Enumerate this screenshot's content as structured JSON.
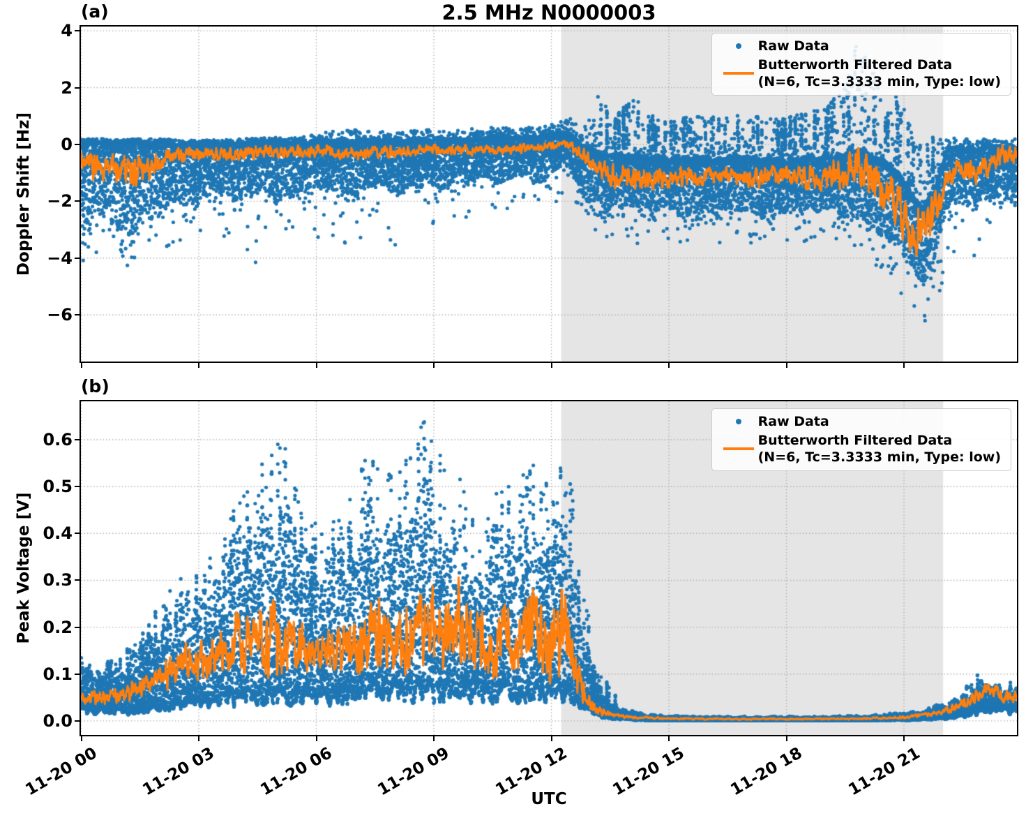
{
  "figure": {
    "title": "2.5 MHz N0000003"
  },
  "panels": {
    "a": {
      "letter": "(a)",
      "ylabel": "Doppler Shift [Hz]",
      "ytick_labels": [
        "4",
        "2",
        "0",
        "−2",
        "−4",
        "−6"
      ]
    },
    "b": {
      "letter": "(b)",
      "ylabel": "Peak Voltage [V]",
      "ytick_labels": [
        "0.6",
        "0.5",
        "0.4",
        "0.3",
        "0.2",
        "0.1",
        "0.0"
      ]
    }
  },
  "xaxis": {
    "label": "UTC",
    "tick_labels": [
      "11-20 00",
      "11-20 03",
      "11-20 06",
      "11-20 09",
      "11-20 12",
      "11-20 15",
      "11-20 18",
      "11-20 21"
    ],
    "tick_hours": [
      0,
      3,
      6,
      9,
      12,
      15,
      18,
      21
    ]
  },
  "legend": {
    "raw": "Raw Data",
    "filt1": "Butterworth Filtered Data",
    "filt2": "(N=6, Tc=3.3333 min, Type: low)"
  },
  "colors": {
    "raw": "#1f77b4",
    "filtered": "#ff7f0e",
    "shade": "#e5e5e5",
    "grid": "#b0b0b0"
  },
  "chart_data": [
    {
      "type": "scatter",
      "panel": "a",
      "title": "2.5 MHz N0000003",
      "xlabel": "UTC",
      "ylabel": "Doppler Shift [Hz]",
      "x_unit": "hours UTC on 11-20",
      "xlim": [
        0,
        23.88
      ],
      "ylim": [
        -7.64,
        4.15
      ],
      "ytick_values": [
        4,
        2,
        0,
        -2,
        -4,
        -6
      ],
      "xtick_hours": [
        0,
        3,
        6,
        9,
        12,
        15,
        18,
        21
      ],
      "grid": true,
      "legend_position": "upper right",
      "legend_entries": [
        "Raw Data",
        "Butterworth Filtered Data (N=6, Tc=3.3333 min, Type: low)"
      ],
      "shaded_region_hours": [
        12.25,
        22.0
      ],
      "raw_band": {
        "description": "blue raw-data scatter envelope: [hour, sparse_max, dense_top, dense_bottom, sparse_min] in Hz",
        "keypoints": [
          [
            0.0,
            0.2,
            0.1,
            -2.6,
            -4.2
          ],
          [
            0.7,
            0.2,
            0.1,
            -2.9,
            -4.4
          ],
          [
            1.4,
            0.2,
            0.08,
            -3.0,
            -4.3
          ],
          [
            2.0,
            0.2,
            0.05,
            -2.2,
            -4.0
          ],
          [
            2.6,
            0.15,
            0.05,
            -2.0,
            -3.3
          ],
          [
            3.2,
            0.15,
            0.05,
            -1.9,
            -3.1
          ],
          [
            4.0,
            0.2,
            0.06,
            -1.8,
            -3.6
          ],
          [
            4.6,
            0.25,
            0.08,
            -1.8,
            -4.6
          ],
          [
            5.2,
            0.25,
            0.1,
            -1.7,
            -3.0
          ],
          [
            6.0,
            0.35,
            0.1,
            -1.6,
            -3.3
          ],
          [
            6.8,
            0.6,
            0.12,
            -1.7,
            -3.7
          ],
          [
            7.5,
            0.45,
            0.12,
            -1.6,
            -3.1
          ],
          [
            8.2,
            0.45,
            0.15,
            -1.5,
            -3.7
          ],
          [
            9.0,
            0.55,
            0.2,
            -1.5,
            -3.1
          ],
          [
            9.8,
            0.5,
            0.2,
            -1.4,
            -2.8
          ],
          [
            10.4,
            0.7,
            0.25,
            -1.35,
            -2.6
          ],
          [
            11.0,
            0.55,
            0.25,
            -1.3,
            -2.5
          ],
          [
            11.6,
            0.65,
            0.3,
            -1.2,
            -2.4
          ],
          [
            12.1,
            0.75,
            0.35,
            -1.0,
            -2.1
          ],
          [
            12.45,
            0.95,
            0.4,
            -0.85,
            -1.6
          ],
          [
            12.8,
            0.5,
            0.0,
            -1.6,
            -2.5
          ],
          [
            13.2,
            1.85,
            -0.3,
            -2.2,
            -3.2
          ],
          [
            13.6,
            0.9,
            -0.4,
            -2.3,
            -3.3
          ],
          [
            14.1,
            1.8,
            -0.4,
            -2.3,
            -3.6
          ],
          [
            14.7,
            0.85,
            -0.5,
            -2.4,
            -3.4
          ],
          [
            15.3,
            0.95,
            -0.5,
            -2.4,
            -3.6
          ],
          [
            16.1,
            1.0,
            -0.5,
            -2.4,
            -3.5
          ],
          [
            17.0,
            1.05,
            -0.5,
            -2.4,
            -3.6
          ],
          [
            18.0,
            0.95,
            -0.5,
            -2.4,
            -3.4
          ],
          [
            19.0,
            1.3,
            -0.4,
            -2.5,
            -3.5
          ],
          [
            19.5,
            2.1,
            -0.3,
            -2.5,
            -3.6
          ],
          [
            19.8,
            3.6,
            -0.2,
            -2.6,
            -3.8
          ],
          [
            20.1,
            3.1,
            -0.3,
            -2.8,
            -4.1
          ],
          [
            20.5,
            1.6,
            -0.6,
            -3.1,
            -4.7
          ],
          [
            20.9,
            1.8,
            -1.0,
            -3.5,
            -5.3
          ],
          [
            21.2,
            0.6,
            -1.8,
            -4.4,
            -6.4
          ],
          [
            21.5,
            0.15,
            -2.2,
            -4.9,
            -7.0
          ],
          [
            21.8,
            0.4,
            -1.6,
            -4.1,
            -5.6
          ],
          [
            22.05,
            0.3,
            -0.3,
            -2.6,
            -4.6
          ],
          [
            22.4,
            0.2,
            -0.1,
            -2.0,
            -3.6
          ],
          [
            22.8,
            0.2,
            -0.2,
            -2.3,
            -4.3
          ],
          [
            23.1,
            0.25,
            -0.1,
            -1.8,
            -3.0
          ],
          [
            23.5,
            0.2,
            -0.1,
            -1.9,
            -2.7
          ]
        ]
      },
      "filtered_line": {
        "description": "orange Butterworth-filtered line: [hour, mean Hz, oscillation amplitude Hz]",
        "keypoints": [
          [
            0.0,
            -0.7,
            0.45
          ],
          [
            0.5,
            -0.9,
            0.5
          ],
          [
            1.0,
            -0.8,
            0.5
          ],
          [
            1.5,
            -1.0,
            0.6
          ],
          [
            2.0,
            -0.5,
            0.35
          ],
          [
            3.0,
            -0.35,
            0.3
          ],
          [
            4.0,
            -0.3,
            0.28
          ],
          [
            5.0,
            -0.3,
            0.25
          ],
          [
            6.0,
            -0.25,
            0.22
          ],
          [
            7.0,
            -0.3,
            0.25
          ],
          [
            8.0,
            -0.25,
            0.2
          ],
          [
            9.0,
            -0.2,
            0.2
          ],
          [
            10.0,
            -0.2,
            0.2
          ],
          [
            11.0,
            -0.15,
            0.18
          ],
          [
            11.8,
            -0.1,
            0.15
          ],
          [
            12.3,
            0.05,
            0.1
          ],
          [
            12.6,
            -0.15,
            0.2
          ],
          [
            13.0,
            -0.6,
            0.3
          ],
          [
            13.5,
            -1.1,
            0.45
          ],
          [
            14.0,
            -1.2,
            0.45
          ],
          [
            15.0,
            -1.2,
            0.4
          ],
          [
            16.0,
            -1.1,
            0.35
          ],
          [
            17.0,
            -1.2,
            0.35
          ],
          [
            18.0,
            -1.1,
            0.4
          ],
          [
            19.0,
            -1.2,
            0.45
          ],
          [
            19.8,
            -0.9,
            0.9
          ],
          [
            20.3,
            -1.3,
            0.85
          ],
          [
            20.8,
            -2.2,
            0.9
          ],
          [
            21.3,
            -3.3,
            1.0
          ],
          [
            21.6,
            -3.0,
            0.9
          ],
          [
            22.0,
            -1.6,
            0.6
          ],
          [
            22.3,
            -0.8,
            0.5
          ],
          [
            22.8,
            -1.0,
            0.5
          ],
          [
            23.2,
            -0.6,
            0.45
          ],
          [
            23.5,
            -0.4,
            0.4
          ]
        ]
      }
    },
    {
      "type": "scatter",
      "panel": "b",
      "xlabel": "UTC",
      "ylabel": "Peak Voltage [V]",
      "x_unit": "hours UTC on 11-20",
      "xlim": [
        0,
        23.88
      ],
      "ylim": [
        -0.03,
        0.682
      ],
      "ytick_values": [
        0.6,
        0.5,
        0.4,
        0.3,
        0.2,
        0.1,
        0.0
      ],
      "xtick_hours": [
        0,
        3,
        6,
        9,
        12,
        15,
        18,
        21
      ],
      "grid": true,
      "legend_position": "upper right",
      "legend_entries": [
        "Raw Data",
        "Butterworth Filtered Data (N=6, Tc=3.3333 min, Type: low)"
      ],
      "shaded_region_hours": [
        12.25,
        22.0
      ],
      "raw_band": {
        "description": "blue raw-data scatter envelope: [hour, spike_max, dense_top, dense_bottom] in V",
        "keypoints": [
          [
            0.0,
            0.13,
            0.12,
            0.02
          ],
          [
            0.5,
            0.12,
            0.1,
            0.02
          ],
          [
            1.0,
            0.14,
            0.12,
            0.02
          ],
          [
            1.5,
            0.18,
            0.15,
            0.02
          ],
          [
            2.0,
            0.25,
            0.2,
            0.03
          ],
          [
            2.5,
            0.31,
            0.25,
            0.03
          ],
          [
            3.0,
            0.32,
            0.28,
            0.04
          ],
          [
            3.5,
            0.38,
            0.3,
            0.04
          ],
          [
            4.0,
            0.47,
            0.35,
            0.05
          ],
          [
            4.5,
            0.55,
            0.4,
            0.05
          ],
          [
            4.9,
            0.61,
            0.45,
            0.05
          ],
          [
            5.3,
            0.58,
            0.42,
            0.05
          ],
          [
            5.7,
            0.45,
            0.35,
            0.05
          ],
          [
            6.2,
            0.4,
            0.3,
            0.05
          ],
          [
            6.7,
            0.47,
            0.35,
            0.05
          ],
          [
            7.3,
            0.59,
            0.45,
            0.06
          ],
          [
            7.7,
            0.52,
            0.4,
            0.06
          ],
          [
            8.2,
            0.54,
            0.4,
            0.06
          ],
          [
            8.8,
            0.65,
            0.48,
            0.06
          ],
          [
            9.3,
            0.55,
            0.42,
            0.06
          ],
          [
            9.7,
            0.52,
            0.4,
            0.06
          ],
          [
            10.2,
            0.45,
            0.35,
            0.06
          ],
          [
            10.7,
            0.5,
            0.38,
            0.06
          ],
          [
            11.2,
            0.52,
            0.4,
            0.06
          ],
          [
            11.6,
            0.56,
            0.42,
            0.06
          ],
          [
            12.0,
            0.5,
            0.38,
            0.06
          ],
          [
            12.4,
            0.63,
            0.45,
            0.05
          ],
          [
            12.7,
            0.35,
            0.25,
            0.04
          ],
          [
            13.0,
            0.2,
            0.12,
            0.02
          ],
          [
            13.3,
            0.1,
            0.06,
            0.01
          ],
          [
            13.7,
            0.05,
            0.03,
            0.005
          ],
          [
            14.2,
            0.02,
            0.015,
            0.002
          ],
          [
            15.0,
            0.015,
            0.01,
            0.001
          ],
          [
            16.0,
            0.012,
            0.008,
            0.001
          ],
          [
            17.0,
            0.012,
            0.008,
            0.001
          ],
          [
            18.0,
            0.012,
            0.008,
            0.001
          ],
          [
            19.0,
            0.012,
            0.008,
            0.001
          ],
          [
            20.0,
            0.015,
            0.01,
            0.001
          ],
          [
            21.0,
            0.02,
            0.015,
            0.002
          ],
          [
            21.5,
            0.03,
            0.02,
            0.003
          ],
          [
            22.0,
            0.05,
            0.035,
            0.005
          ],
          [
            22.5,
            0.07,
            0.05,
            0.01
          ],
          [
            22.9,
            0.1,
            0.08,
            0.02
          ],
          [
            23.1,
            0.12,
            0.1,
            0.03
          ],
          [
            23.5,
            0.09,
            0.07,
            0.02
          ]
        ]
      },
      "filtered_line": {
        "description": "orange Butterworth-filtered line: [hour, mean V, oscillation amplitude V]",
        "keypoints": [
          [
            0.0,
            0.05,
            0.015
          ],
          [
            0.8,
            0.05,
            0.015
          ],
          [
            1.5,
            0.07,
            0.025
          ],
          [
            2.0,
            0.09,
            0.03
          ],
          [
            2.5,
            0.12,
            0.045
          ],
          [
            3.0,
            0.13,
            0.05
          ],
          [
            3.5,
            0.15,
            0.055
          ],
          [
            4.0,
            0.17,
            0.07
          ],
          [
            4.5,
            0.17,
            0.08
          ],
          [
            5.0,
            0.18,
            0.09
          ],
          [
            5.5,
            0.16,
            0.06
          ],
          [
            6.0,
            0.14,
            0.05
          ],
          [
            6.5,
            0.15,
            0.06
          ],
          [
            7.0,
            0.17,
            0.08
          ],
          [
            7.5,
            0.2,
            0.1
          ],
          [
            8.0,
            0.15,
            0.07
          ],
          [
            8.5,
            0.18,
            0.08
          ],
          [
            9.0,
            0.2,
            0.09
          ],
          [
            9.5,
            0.22,
            0.11
          ],
          [
            10.0,
            0.17,
            0.07
          ],
          [
            10.5,
            0.16,
            0.07
          ],
          [
            11.0,
            0.18,
            0.08
          ],
          [
            11.5,
            0.2,
            0.1
          ],
          [
            12.0,
            0.15,
            0.08
          ],
          [
            12.3,
            0.18,
            0.12
          ],
          [
            12.6,
            0.1,
            0.06
          ],
          [
            12.9,
            0.04,
            0.02
          ],
          [
            13.2,
            0.02,
            0.01
          ],
          [
            13.6,
            0.012,
            0.005
          ],
          [
            14.0,
            0.008,
            0.003
          ],
          [
            15.0,
            0.005,
            0.002
          ],
          [
            16.0,
            0.004,
            0.002
          ],
          [
            17.0,
            0.004,
            0.002
          ],
          [
            18.0,
            0.004,
            0.002
          ],
          [
            19.0,
            0.004,
            0.002
          ],
          [
            20.0,
            0.005,
            0.002
          ],
          [
            21.0,
            0.008,
            0.003
          ],
          [
            21.5,
            0.012,
            0.004
          ],
          [
            22.0,
            0.02,
            0.006
          ],
          [
            22.5,
            0.035,
            0.012
          ],
          [
            23.0,
            0.06,
            0.02
          ],
          [
            23.2,
            0.07,
            0.02
          ],
          [
            23.5,
            0.05,
            0.015
          ]
        ]
      }
    }
  ]
}
